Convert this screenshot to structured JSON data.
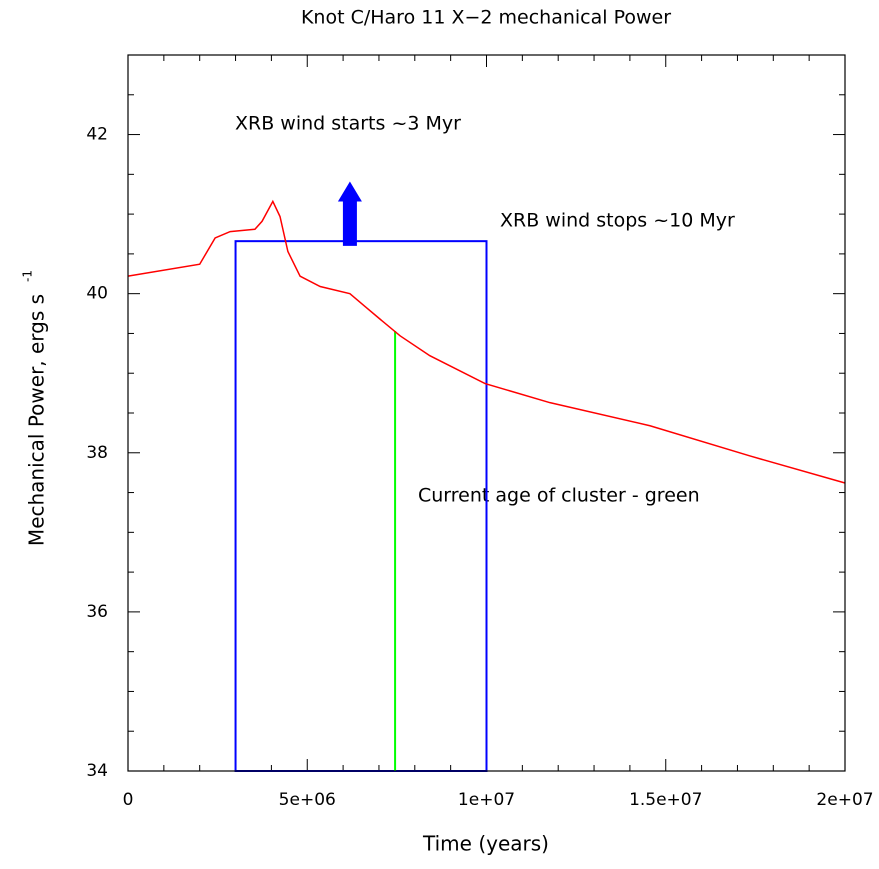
{
  "chart_data": {
    "type": "line",
    "title": "Knot C/Haro 11 X−2 mechanical Power",
    "x_label": "Time (years)",
    "y_label": "Mechanical Power, ergs s",
    "y_label_superscript": "-1",
    "annotations": [
      "XRB wind starts ~3 Myr",
      "XRB wind stops ~10 Myr",
      "Current age of cluster - green"
    ],
    "x": [
      0,
      2000000,
      2430000,
      2850000,
      3540000,
      3740000,
      4040000,
      4240000,
      4460000,
      4800000,
      5360000,
      6190000,
      6610000,
      7030000,
      7590000,
      8420000,
      9960000,
      11770000,
      14560000,
      17350000,
      20000000
    ],
    "series": [
      {
        "name": "Mechanical Power",
        "color": "#ff0000",
        "values": [
          40.22,
          40.37,
          40.7,
          40.78,
          40.81,
          40.91,
          41.16,
          40.97,
          40.53,
          40.22,
          40.09,
          40.0,
          39.84,
          39.68,
          39.47,
          39.22,
          38.87,
          38.63,
          38.34,
          37.96,
          37.62
        ]
      }
    ],
    "box": {
      "color": "#0000ff",
      "x": [
        3000000,
        10000000
      ],
      "top": 40.66
    },
    "current_age": {
      "color": "#00ff00",
      "x": 7450000,
      "y": 39.53
    },
    "arrow": {
      "color": "#0000ff",
      "x": 6190000,
      "y": [
        40.6,
        41.41
      ]
    },
    "xlim": [
      0,
      20000000
    ],
    "xticks": [
      0,
      {
        "value": 5000000,
        "label": "5e+06"
      },
      {
        "value": 10000000,
        "label": "1e+07"
      },
      {
        "value": 15000000,
        "label": "1.5e+07"
      },
      {
        "value": 20000000,
        "label": "2e+07"
      }
    ],
    "xminorticks": [
      1000000,
      2000000,
      3000000,
      4000000,
      6000000,
      7000000,
      8000000,
      9000000,
      11000000,
      12000000,
      13000000,
      14000000,
      16000000,
      17000000,
      18000000,
      19000000
    ],
    "ylim": [
      34,
      43
    ],
    "yticks": [
      34,
      36,
      38,
      40,
      42
    ],
    "yminorticks": [
      34.5,
      35,
      35.5,
      36.5,
      37,
      37.5,
      38.5,
      39,
      39.5,
      40.5,
      41,
      41.5,
      42.5
    ]
  }
}
